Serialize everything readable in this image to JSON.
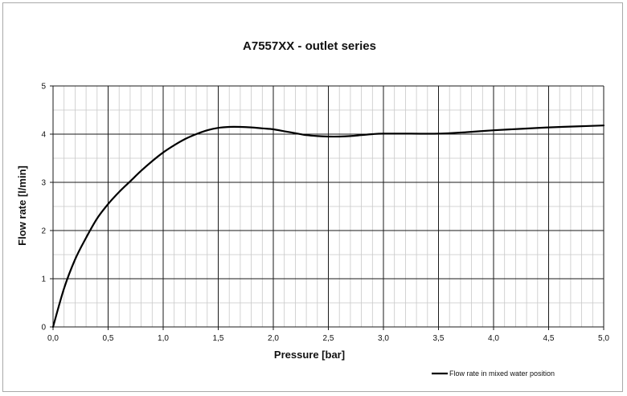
{
  "chart_data": {
    "type": "line",
    "title": "A7557XX - outlet series",
    "xlabel": "Pressure [bar]",
    "ylabel": "Flow rate [l/min]",
    "xlim": [
      0,
      5
    ],
    "ylim": [
      0,
      5
    ],
    "x_ticks": [
      "0,0",
      "0,5",
      "1,0",
      "1,5",
      "2,0",
      "2,5",
      "3,0",
      "3,5",
      "4,0",
      "4,5",
      "5,0"
    ],
    "y_ticks": [
      "0",
      "1",
      "2",
      "3",
      "4",
      "5"
    ],
    "grid": true,
    "legend_position": "bottom-right",
    "series": [
      {
        "name": "Flow rate in mixed water position",
        "color": "#000000",
        "x": [
          0,
          0.1,
          0.2,
          0.3,
          0.4,
          0.5,
          0.6,
          0.7,
          0.8,
          0.9,
          1.0,
          1.1,
          1.2,
          1.3,
          1.4,
          1.5,
          1.6,
          1.7,
          1.8,
          1.9,
          2.0,
          2.1,
          2.2,
          2.3,
          2.4,
          2.5,
          2.6,
          2.7,
          2.8,
          2.9,
          3.0,
          3.25,
          3.5,
          3.75,
          4.0,
          4.25,
          4.5,
          4.75,
          5.0
        ],
        "y": [
          0,
          0.8,
          1.4,
          1.85,
          2.25,
          2.55,
          2.8,
          3.02,
          3.24,
          3.44,
          3.62,
          3.77,
          3.9,
          4.0,
          4.08,
          4.13,
          4.15,
          4.15,
          4.14,
          4.12,
          4.1,
          4.06,
          4.02,
          3.98,
          3.96,
          3.95,
          3.95,
          3.96,
          3.98,
          4.0,
          4.01,
          4.01,
          4.01,
          4.04,
          4.08,
          4.11,
          4.14,
          4.16,
          4.18
        ]
      }
    ]
  }
}
